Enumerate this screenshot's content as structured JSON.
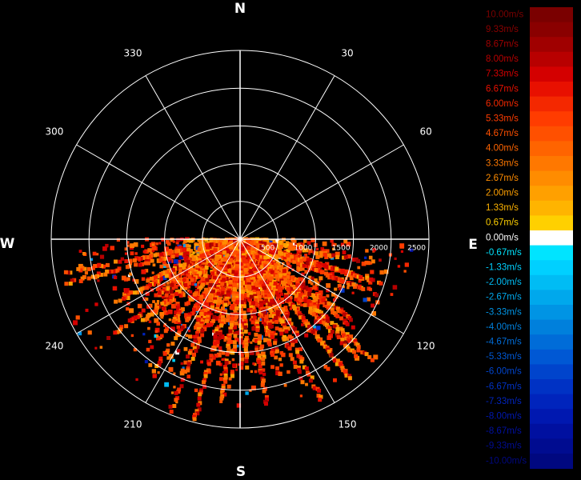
{
  "chart_data": {
    "type": "polar-scatter",
    "title": "",
    "cardinals": [
      "N",
      "E",
      "S",
      "W"
    ],
    "angle_ticks": [
      {
        "deg": 30,
        "label": "30"
      },
      {
        "deg": 60,
        "label": "60"
      },
      {
        "deg": 120,
        "label": "120"
      },
      {
        "deg": 150,
        "label": "150"
      },
      {
        "deg": 210,
        "label": "210"
      },
      {
        "deg": 240,
        "label": "240"
      },
      {
        "deg": 300,
        "label": "300"
      },
      {
        "deg": 330,
        "label": "330"
      }
    ],
    "range_rings": [
      500,
      1000,
      1500,
      2000,
      2500
    ],
    "range_max": 2500,
    "range_labels": [
      "500",
      "1000",
      "1500",
      "2000",
      "2500"
    ],
    "grid": true,
    "colorbar": {
      "unit": "m/s",
      "labels": [
        "10.00m/s",
        "9.33m/s",
        "8.67m/s",
        "8.00m/s",
        "7.33m/s",
        "6.67m/s",
        "6.00m/s",
        "5.33m/s",
        "4.67m/s",
        "4.00m/s",
        "3.33m/s",
        "2.67m/s",
        "2.00m/s",
        "1.33m/s",
        "0.67m/s",
        "0.00m/s",
        "-0.67m/s",
        "-1.33m/s",
        "-2.00m/s",
        "-2.67m/s",
        "-3.33m/s",
        "-4.00m/s",
        "-4.67m/s",
        "-5.33m/s",
        "-6.00m/s",
        "-6.67m/s",
        "-7.33m/s",
        "-8.00m/s",
        "-8.67m/s",
        "-9.33m/s",
        "-10.00m/s"
      ],
      "colors": [
        "#7a0000",
        "#8a0000",
        "#a00000",
        "#b80000",
        "#d40000",
        "#e81000",
        "#f42800",
        "#ff3c00",
        "#ff5000",
        "#ff6400",
        "#ff7800",
        "#ff8c00",
        "#ffa000",
        "#ffb400",
        "#ffd000",
        "#ffffff",
        "#00e4ff",
        "#00d0ff",
        "#00bcf4",
        "#00a8ec",
        "#0094e4",
        "#0080dc",
        "#006cd8",
        "#0058d4",
        "#0044cc",
        "#0032c4",
        "#0024bc",
        "#0018b0",
        "#0010a0",
        "#000c90",
        "#000880"
      ],
      "text_colors": [
        "#7a0000",
        "#8a0000",
        "#a00000",
        "#b80000",
        "#d40000",
        "#e81000",
        "#f42800",
        "#ff3c00",
        "#ff5000",
        "#ff6400",
        "#ff7800",
        "#ff8c00",
        "#ffa000",
        "#ffb400",
        "#ffd000",
        "#ffffff",
        "#00e4ff",
        "#00d0ff",
        "#00bcf4",
        "#00a8ec",
        "#0094e4",
        "#0080dc",
        "#006cd8",
        "#0058d4",
        "#0044cc",
        "#0032c4",
        "#0024bc",
        "#0018b0",
        "#0010a0",
        "#000c90",
        "#000880"
      ]
    },
    "velocity_field": {
      "sector_deg": [
        90,
        270
      ],
      "range_max": 2500,
      "description_of_values": "radial velocity, mostly +2 to +8 m/s (orange to red), sparse negative returns"
    }
  }
}
